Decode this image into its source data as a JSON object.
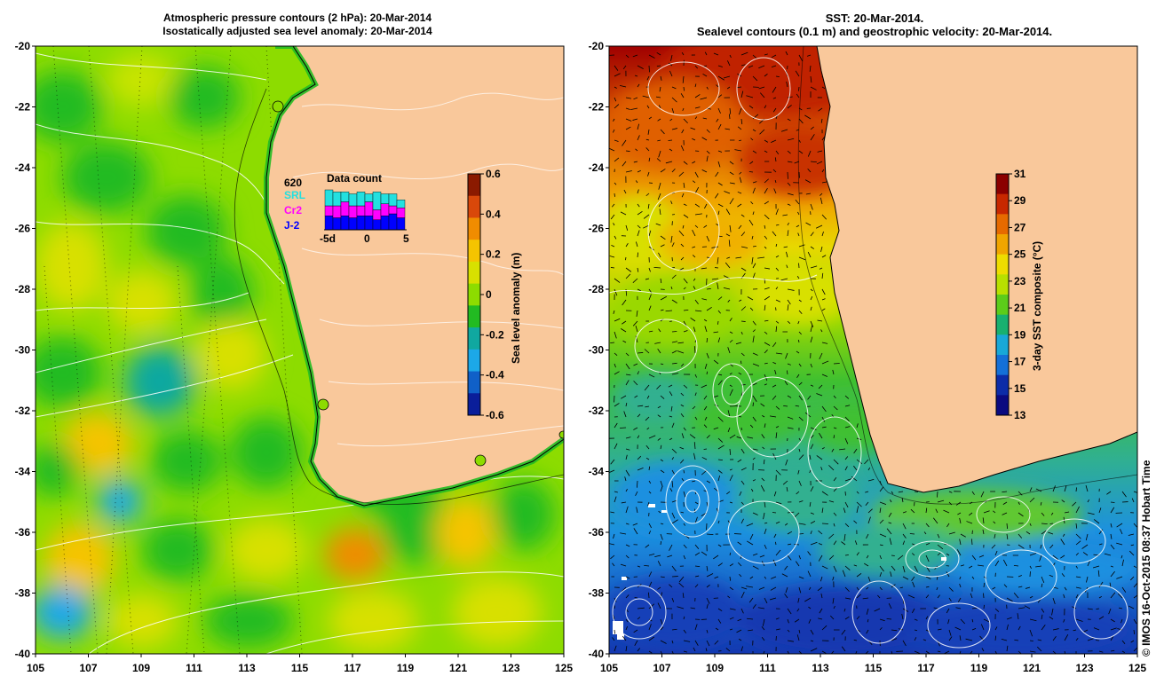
{
  "left_panel": {
    "title_line1": "Atmospheric pressure contours (2 hPa): 20-Mar-2014",
    "title_line2": "Isostatically adjusted sea level anomaly: 20-Mar-2014",
    "colorbar": {
      "label": "Sea level anomaly (m)",
      "ticks": [
        "0.6",
        "0.4",
        "0.2",
        "0",
        "-0.2",
        "-0.4",
        "-0.6"
      ],
      "colors": [
        "#8b1a00",
        "#d9480a",
        "#f08c00",
        "#f5c400",
        "#d8e000",
        "#8ddc00",
        "#22bb22",
        "#10a8a0",
        "#1ca8e8",
        "#1060c8",
        "#0a1e9a"
      ]
    },
    "data_count": {
      "title": "Data count",
      "total": "620",
      "missions": [
        {
          "name": "SRL",
          "color": "#22e0e0"
        },
        {
          "name": "Cr2",
          "color": "#ff00ff"
        },
        {
          "name": "J-2",
          "color": "#0000ff"
        }
      ],
      "xticks": [
        "-5d",
        "0",
        "5"
      ],
      "bars_srl": [
        0.4,
        0.35,
        0.25,
        0.3,
        0.35,
        0.2,
        0.45,
        0.25,
        0.3,
        0.2
      ],
      "bars_cr2": [
        0.25,
        0.3,
        0.35,
        0.3,
        0.25,
        0.35,
        0.25,
        0.3,
        0.2,
        0.25
      ],
      "bars_j2": [
        0.35,
        0.3,
        0.35,
        0.3,
        0.35,
        0.35,
        0.25,
        0.35,
        0.4,
        0.3
      ]
    }
  },
  "right_panel": {
    "title_line1": "SST: 20-Mar-2014.",
    "title_line2": "Sealevel contours (0.1 m) and geostrophic velocity: 20-Mar-2014.",
    "colorbar": {
      "label": "3-day SST composite (°C)",
      "ticks": [
        "31",
        "29",
        "27",
        "25",
        "23",
        "21",
        "19",
        "17",
        "15",
        "13"
      ],
      "colors": [
        "#8b0000",
        "#c82800",
        "#e66a00",
        "#f0a500",
        "#eedd00",
        "#b8e000",
        "#5ccc1a",
        "#18b070",
        "#18a8d8",
        "#1470d8",
        "#0c2ca8",
        "#0a0a80"
      ]
    }
  },
  "axes": {
    "lat_ticks": [
      "-20",
      "-22",
      "-24",
      "-26",
      "-28",
      "-30",
      "-32",
      "-34",
      "-36",
      "-38",
      "-40"
    ],
    "lon_ticks": [
      "105",
      "107",
      "109",
      "111",
      "113",
      "115",
      "117",
      "119",
      "121",
      "123",
      "125"
    ]
  },
  "colors": {
    "land": "#f9c89b",
    "coastline": "#000000",
    "contour": "#ffffff"
  },
  "copyright": "© IMOS 16-Oct-2015 08:37 Hobart Time"
}
